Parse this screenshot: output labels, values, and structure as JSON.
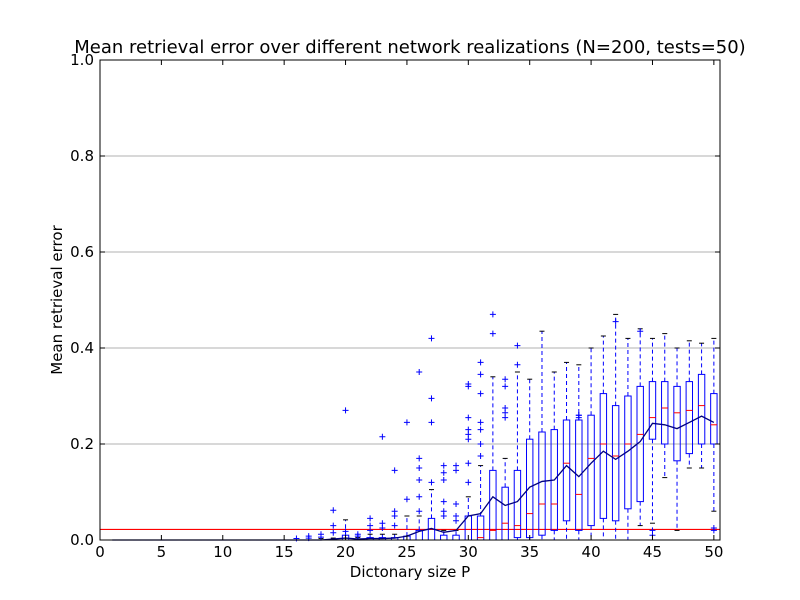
{
  "chart_data": {
    "type": "box",
    "title": "Mean retrieval error over different network realizations (N=200, tests=50)",
    "xlabel": "Dictonary size P",
    "ylabel": "Mean retrieval error",
    "xlim": [
      0,
      50.5
    ],
    "ylim": [
      0,
      1.0
    ],
    "xticks": [
      "0",
      "5",
      "10",
      "15",
      "20",
      "25",
      "30",
      "35",
      "40",
      "45",
      "50"
    ],
    "yticks": [
      "0.0",
      "0.2",
      "0.4",
      "0.6",
      "0.8",
      "1.0"
    ],
    "grid": "horizontal",
    "colors": {
      "box": "#0000ff",
      "median": "#ff0000",
      "mean_line": "#000080",
      "threshold": "#ff0000",
      "grid": "#b0b0b0"
    },
    "threshold": 0.022,
    "x": [
      1,
      2,
      3,
      4,
      5,
      6,
      7,
      8,
      9,
      10,
      11,
      12,
      13,
      14,
      15,
      16,
      17,
      18,
      19,
      20,
      21,
      22,
      23,
      24,
      25,
      26,
      27,
      28,
      29,
      30,
      31,
      32,
      33,
      34,
      35,
      36,
      37,
      38,
      39,
      40,
      41,
      42,
      43,
      44,
      45,
      46,
      47,
      48,
      49,
      50
    ],
    "boxes": [
      {
        "x": 1,
        "q1": 0,
        "median": 0,
        "q3": 0,
        "whislo": 0,
        "whishi": 0,
        "fliers": []
      },
      {
        "x": 2,
        "q1": 0,
        "median": 0,
        "q3": 0,
        "whislo": 0,
        "whishi": 0,
        "fliers": []
      },
      {
        "x": 3,
        "q1": 0,
        "median": 0,
        "q3": 0,
        "whislo": 0,
        "whishi": 0,
        "fliers": []
      },
      {
        "x": 4,
        "q1": 0,
        "median": 0,
        "q3": 0,
        "whislo": 0,
        "whishi": 0,
        "fliers": []
      },
      {
        "x": 5,
        "q1": 0,
        "median": 0,
        "q3": 0,
        "whislo": 0,
        "whishi": 0,
        "fliers": []
      },
      {
        "x": 6,
        "q1": 0,
        "median": 0,
        "q3": 0,
        "whislo": 0,
        "whishi": 0,
        "fliers": []
      },
      {
        "x": 7,
        "q1": 0,
        "median": 0,
        "q3": 0,
        "whislo": 0,
        "whishi": 0,
        "fliers": []
      },
      {
        "x": 8,
        "q1": 0,
        "median": 0,
        "q3": 0,
        "whislo": 0,
        "whishi": 0,
        "fliers": []
      },
      {
        "x": 9,
        "q1": 0,
        "median": 0,
        "q3": 0,
        "whislo": 0,
        "whishi": 0,
        "fliers": []
      },
      {
        "x": 10,
        "q1": 0,
        "median": 0,
        "q3": 0,
        "whislo": 0,
        "whishi": 0,
        "fliers": []
      },
      {
        "x": 11,
        "q1": 0,
        "median": 0,
        "q3": 0,
        "whislo": 0,
        "whishi": 0,
        "fliers": []
      },
      {
        "x": 12,
        "q1": 0,
        "median": 0,
        "q3": 0,
        "whislo": 0,
        "whishi": 0,
        "fliers": []
      },
      {
        "x": 13,
        "q1": 0,
        "median": 0,
        "q3": 0,
        "whislo": 0,
        "whishi": 0,
        "fliers": []
      },
      {
        "x": 14,
        "q1": 0,
        "median": 0,
        "q3": 0,
        "whislo": 0,
        "whishi": 0,
        "fliers": []
      },
      {
        "x": 15,
        "q1": 0,
        "median": 0,
        "q3": 0,
        "whislo": 0,
        "whishi": 0,
        "fliers": []
      },
      {
        "x": 16,
        "q1": 0,
        "median": 0,
        "q3": 0,
        "whislo": 0,
        "whishi": 0,
        "fliers": [
          0.003
        ]
      },
      {
        "x": 17,
        "q1": 0,
        "median": 0,
        "q3": 0,
        "whislo": 0,
        "whishi": 0,
        "fliers": [
          0.008,
          0.004
        ]
      },
      {
        "x": 18,
        "q1": 0,
        "median": 0,
        "q3": 0,
        "whislo": 0,
        "whishi": 0.003,
        "fliers": [
          0.012,
          0.006
        ]
      },
      {
        "x": 19,
        "q1": 0,
        "median": 0,
        "q3": 0,
        "whislo": 0,
        "whishi": 0.004,
        "fliers": [
          0.062,
          0.03,
          0.015
        ]
      },
      {
        "x": 20,
        "q1": 0,
        "median": 0,
        "q3": 0.01,
        "whislo": 0,
        "whishi": 0.042,
        "fliers": [
          0.27,
          0.018
        ]
      },
      {
        "x": 21,
        "q1": 0,
        "median": 0,
        "q3": 0,
        "whislo": 0,
        "whishi": 0.005,
        "fliers": [
          0.012,
          0.008
        ]
      },
      {
        "x": 22,
        "q1": 0,
        "median": 0,
        "q3": 0.005,
        "whislo": 0,
        "whishi": 0.012,
        "fliers": [
          0.045,
          0.03,
          0.02
        ]
      },
      {
        "x": 23,
        "q1": 0,
        "median": 0,
        "q3": 0.005,
        "whislo": 0,
        "whishi": 0.012,
        "fliers": [
          0.215,
          0.035,
          0.025
        ]
      },
      {
        "x": 24,
        "q1": 0,
        "median": 0,
        "q3": 0.005,
        "whislo": 0,
        "whishi": 0.012,
        "fliers": [
          0.145,
          0.06,
          0.05,
          0.03
        ]
      },
      {
        "x": 25,
        "q1": 0,
        "median": 0,
        "q3": 0.008,
        "whislo": 0,
        "whishi": 0.05,
        "fliers": [
          0.245,
          0.085
        ]
      },
      {
        "x": 26,
        "q1": 0,
        "median": 0,
        "q3": 0.02,
        "whislo": 0,
        "whishi": 0.05,
        "fliers": [
          0.35,
          0.17,
          0.15,
          0.125,
          0.09,
          0.06
        ]
      },
      {
        "x": 27,
        "q1": 0,
        "median": 0,
        "q3": 0.045,
        "whislo": 0,
        "whishi": 0.105,
        "fliers": [
          0.42,
          0.295,
          0.245,
          0.12
        ]
      },
      {
        "x": 28,
        "q1": 0,
        "median": 0,
        "q3": 0.01,
        "whislo": 0,
        "whishi": 0.02,
        "fliers": [
          0.155,
          0.14,
          0.125,
          0.08,
          0.06,
          0.05
        ]
      },
      {
        "x": 29,
        "q1": 0,
        "median": 0,
        "q3": 0.01,
        "whislo": 0,
        "whishi": 0.02,
        "fliers": [
          0.155,
          0.145,
          0.075,
          0.05,
          0.04
        ]
      },
      {
        "x": 30,
        "q1": 0,
        "median": 0,
        "q3": 0.05,
        "whislo": 0,
        "whishi": 0.09,
        "fliers": [
          0.325,
          0.32,
          0.255,
          0.23,
          0.22,
          0.21,
          0.16,
          0.12
        ]
      },
      {
        "x": 31,
        "q1": 0,
        "median": 0.005,
        "q3": 0.05,
        "whislo": 0,
        "whishi": 0.155,
        "fliers": [
          0.37,
          0.345,
          0.305,
          0.245,
          0.23,
          0.2,
          0.175
        ]
      },
      {
        "x": 32,
        "q1": 0,
        "median": 0.02,
        "q3": 0.145,
        "whislo": 0,
        "whishi": 0.34,
        "fliers": [
          0.47,
          0.43
        ]
      },
      {
        "x": 33,
        "q1": 0,
        "median": 0.035,
        "q3": 0.11,
        "whislo": 0,
        "whishi": 0.17,
        "fliers": [
          0.335,
          0.32,
          0.275,
          0.265,
          0.255
        ]
      },
      {
        "x": 34,
        "q1": 0.005,
        "median": 0.03,
        "q3": 0.145,
        "whislo": 0,
        "whishi": 0.35,
        "fliers": [
          0.405,
          0.365
        ]
      },
      {
        "x": 35,
        "q1": 0.005,
        "median": 0.055,
        "q3": 0.21,
        "whislo": 0,
        "whishi": 0.335,
        "fliers": []
      },
      {
        "x": 36,
        "q1": 0.01,
        "median": 0.075,
        "q3": 0.225,
        "whislo": 0,
        "whishi": 0.435,
        "fliers": []
      },
      {
        "x": 37,
        "q1": 0.02,
        "median": 0.075,
        "q3": 0.23,
        "whislo": 0,
        "whishi": 0.35,
        "fliers": []
      },
      {
        "x": 38,
        "q1": 0.04,
        "median": 0.16,
        "q3": 0.25,
        "whislo": 0,
        "whishi": 0.37,
        "fliers": []
      },
      {
        "x": 39,
        "q1": 0.02,
        "median": 0.095,
        "q3": 0.25,
        "whislo": 0,
        "whishi": 0.365,
        "fliers": [
          0.26,
          0.26,
          0.255
        ]
      },
      {
        "x": 40,
        "q1": 0.03,
        "median": 0.17,
        "q3": 0.26,
        "whislo": 0,
        "whishi": 0.4,
        "fliers": []
      },
      {
        "x": 41,
        "q1": 0.045,
        "median": 0.2,
        "q3": 0.305,
        "whislo": 0,
        "whishi": 0.425,
        "fliers": []
      },
      {
        "x": 42,
        "q1": 0.04,
        "median": 0.175,
        "q3": 0.28,
        "whislo": 0,
        "whishi": 0.47,
        "fliers": [
          0.455
        ]
      },
      {
        "x": 43,
        "q1": 0.065,
        "median": 0.2,
        "q3": 0.3,
        "whislo": 0,
        "whishi": 0.42,
        "fliers": []
      },
      {
        "x": 44,
        "q1": 0.08,
        "median": 0.22,
        "q3": 0.32,
        "whislo": 0.03,
        "whishi": 0.44,
        "fliers": [
          0.435
        ]
      },
      {
        "x": 45,
        "q1": 0.21,
        "median": 0.255,
        "q3": 0.33,
        "whislo": 0.035,
        "whishi": 0.42,
        "fliers": [
          0.02,
          0.01
        ]
      },
      {
        "x": 46,
        "q1": 0.2,
        "median": 0.275,
        "q3": 0.33,
        "whislo": 0.13,
        "whishi": 0.43,
        "fliers": []
      },
      {
        "x": 47,
        "q1": 0.165,
        "median": 0.265,
        "q3": 0.32,
        "whislo": 0.02,
        "whishi": 0.4,
        "fliers": []
      },
      {
        "x": 48,
        "q1": 0.18,
        "median": 0.27,
        "q3": 0.33,
        "whislo": 0.15,
        "whishi": 0.415,
        "fliers": []
      },
      {
        "x": 49,
        "q1": 0.2,
        "median": 0.28,
        "q3": 0.345,
        "whislo": 0.15,
        "whishi": 0.41,
        "fliers": []
      },
      {
        "x": 50,
        "q1": 0.2,
        "median": 0.24,
        "q3": 0.305,
        "whislo": 0.06,
        "whishi": 0.42,
        "fliers": [
          0.025,
          0.02
        ]
      }
    ],
    "mean_line": [
      0,
      0,
      0,
      0,
      0,
      0,
      0,
      0,
      0,
      0,
      0,
      0,
      0,
      0,
      0,
      0,
      0,
      0,
      0.002,
      0.004,
      0.002,
      0.003,
      0.003,
      0.004,
      0.008,
      0.018,
      0.024,
      0.016,
      0.02,
      0.05,
      0.055,
      0.09,
      0.072,
      0.08,
      0.11,
      0.122,
      0.125,
      0.155,
      0.132,
      0.16,
      0.185,
      0.168,
      0.185,
      0.205,
      0.243,
      0.24,
      0.232,
      0.245,
      0.258,
      0.245
    ]
  }
}
